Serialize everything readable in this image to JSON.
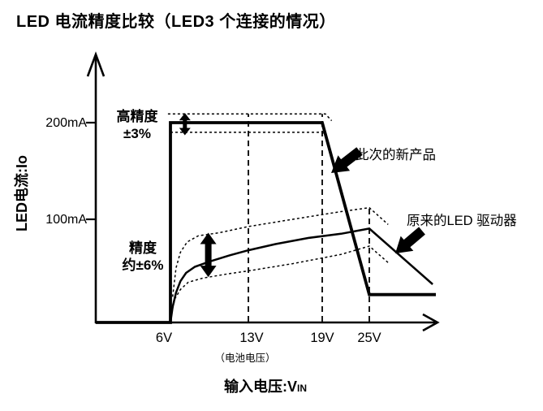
{
  "title": "LED 电流精度比较（LED3 个连接的情况）",
  "y_axis": {
    "label": "LED电流:Io",
    "ticks": [
      "200mA",
      "100mA"
    ]
  },
  "x_axis": {
    "label_prefix": "输入电压:V",
    "label_sub": "IN",
    "ticks": [
      "6V",
      "13V",
      "19V",
      "25V"
    ],
    "tick_note": "（电池电压）"
  },
  "annotations": {
    "new_accuracy_line1": "高精度",
    "new_accuracy_line2": "±3%",
    "old_accuracy_line1": "精度",
    "old_accuracy_line2": "约±6%",
    "new_product_label": "此次的新产品",
    "old_driver_label": "原来的LED 驱动器"
  },
  "colors": {
    "ink": "#000000",
    "background": "#ffffff"
  },
  "chart_data": {
    "type": "line",
    "title": "LED 电流精度比较（LED3 个连接的情况）",
    "xlabel": "输入电压:VIN",
    "ylabel": "LED电流:Io",
    "x_unit": "V",
    "y_unit": "mA",
    "xlim": [
      0,
      34
    ],
    "ylim": [
      0,
      230
    ],
    "x_ticks_v": [
      6,
      13,
      19,
      25
    ],
    "y_ticks_ma": [
      100,
      200
    ],
    "grid": "dashed vertical guides at 13V, 19V, 25V",
    "legend": "inline block-arrow callouts",
    "series": [
      {
        "id": "new-product",
        "label": "此次的新产品",
        "style": "main",
        "points": [
          [
            0,
            0
          ],
          [
            6,
            0
          ],
          [
            6,
            200
          ],
          [
            19,
            200
          ],
          [
            25,
            27
          ],
          [
            33.5,
            27
          ]
        ]
      },
      {
        "id": "new-product-band-top",
        "label": "+3%",
        "style": "band",
        "points": [
          [
            5.8,
            209
          ],
          [
            19.4,
            209
          ],
          [
            20.2,
            202
          ]
        ]
      },
      {
        "id": "new-product-band-bottom",
        "label": "-3%",
        "style": "band",
        "points": [
          [
            6,
            190
          ],
          [
            19,
            190
          ],
          [
            19.7,
            184
          ]
        ]
      },
      {
        "id": "old-driver",
        "label": "原来的LED 驱动器",
        "style": "secondary",
        "points": [
          [
            6,
            0
          ],
          [
            6.2,
            15
          ],
          [
            6.5,
            29
          ],
          [
            6.9,
            40
          ],
          [
            7.4,
            48
          ],
          [
            8.2,
            54
          ],
          [
            9.5,
            59
          ],
          [
            11.3,
            65
          ],
          [
            13,
            70
          ],
          [
            15.2,
            76
          ],
          [
            17.9,
            82
          ],
          [
            21.4,
            86
          ],
          [
            25,
            91
          ],
          [
            33.1,
            37
          ]
        ]
      },
      {
        "id": "old-driver-band-top",
        "label": "+6%",
        "style": "band",
        "points": [
          [
            6.2,
            25
          ],
          [
            6.5,
            53
          ],
          [
            6.9,
            68
          ],
          [
            7.5,
            78
          ],
          [
            8.5,
            84
          ],
          [
            10.4,
            87
          ],
          [
            13,
            93
          ],
          [
            16.6,
            100
          ],
          [
            21.4,
            108
          ],
          [
            25,
            112
          ],
          [
            27.4,
            95
          ]
        ]
      },
      {
        "id": "old-driver-band-bottom",
        "label": "-6%",
        "style": "band",
        "points": [
          [
            6.1,
            9
          ],
          [
            6.4,
            23
          ],
          [
            6.9,
            32
          ],
          [
            7.6,
            39
          ],
          [
            8.9,
            43
          ],
          [
            11.1,
            47
          ],
          [
            13,
            50
          ],
          [
            16.6,
            57
          ],
          [
            21.4,
            66
          ],
          [
            25,
            74
          ],
          [
            27.4,
            58
          ]
        ]
      }
    ],
    "guides": [
      {
        "vin": 13,
        "ma_top": 209
      },
      {
        "vin": 19,
        "ma_top": 209
      },
      {
        "vin": 25,
        "ma_top": 112
      }
    ],
    "error_arrows": [
      {
        "id": "tolerance-arrow-3pct",
        "vin": 7.3,
        "ma_top": 210,
        "ma_bottom": 187,
        "size": "small"
      },
      {
        "id": "tolerance-arrow-6pct",
        "vin": 9.4,
        "ma_top": 87,
        "ma_bottom": 44,
        "size": "large"
      }
    ]
  }
}
